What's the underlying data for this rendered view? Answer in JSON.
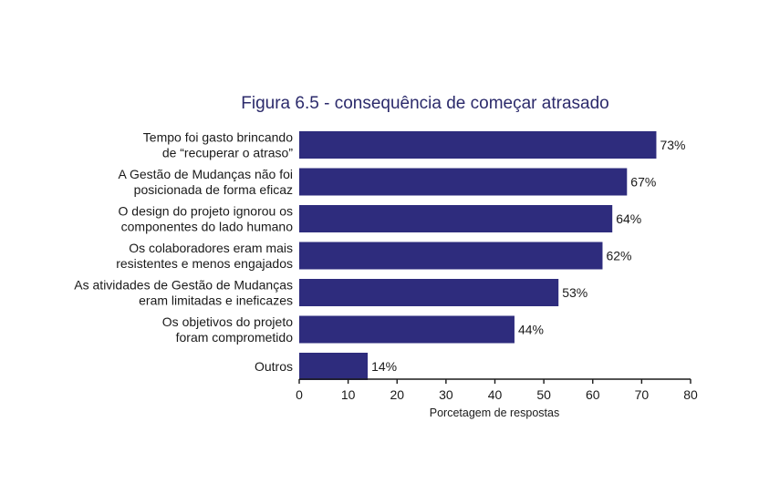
{
  "chart_data": {
    "type": "bar",
    "orientation": "horizontal",
    "title": "Figura 6.5 - consequência de começar atrasado",
    "xlabel": "Porcetagem de respostas",
    "ylabel": "",
    "categories": [
      [
        "Tempo foi gasto brincando",
        "de “recuperar o atraso”"
      ],
      [
        "A Gestão de Mudanças não foi",
        "posicionada de forma eficaz"
      ],
      [
        "O design do projeto ignorou os",
        "componentes do lado humano"
      ],
      [
        "Os colaboradores eram mais",
        "resistentes e menos engajados"
      ],
      [
        "As atividades de Gestão de Mudanças",
        "eram limitadas e ineficazes"
      ],
      [
        "Os objetivos do projeto",
        "foram comprometido"
      ],
      [
        "Outros"
      ]
    ],
    "values": [
      73,
      67,
      64,
      62,
      53,
      44,
      14
    ],
    "value_labels": [
      "73%",
      "67%",
      "64%",
      "62%",
      "53%",
      "44%",
      "14%"
    ],
    "xlim": [
      0,
      80
    ],
    "xticks": [
      0,
      10,
      20,
      30,
      40,
      50,
      60,
      70,
      80
    ],
    "grid": false,
    "legend": "none",
    "colors": {
      "bar": "#2e2c7d",
      "title": "#2b2a6b"
    }
  }
}
